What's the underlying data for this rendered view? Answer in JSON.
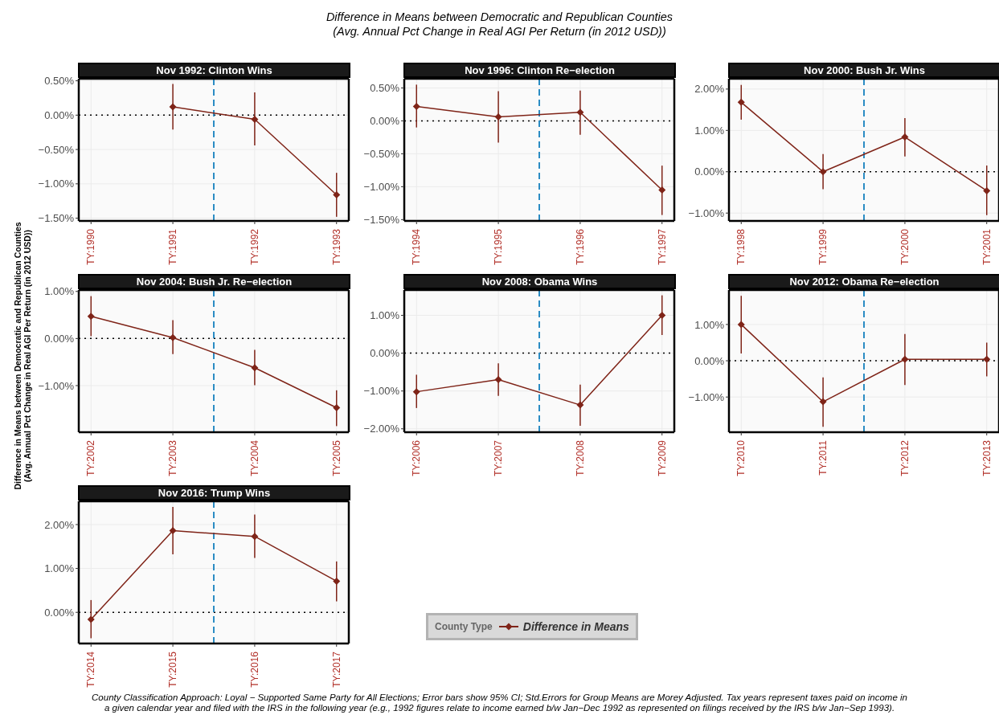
{
  "chart_data": [
    {
      "type": "line",
      "title": "Nov 1992: Clinton Wins",
      "annotations": [
        "Difference in Means between Democratic and Republican Counties\n(Avg. Annual Pct Change in Real AGI Per Return (in 2012 USD))",
        "County Classification Approach: Loyal − Supported Same Party for All Elections; Error bars show 95% CI; Std.Errors for Group Means are Morey Adjusted. Tax years represent taxes paid on income in\na given calendar year and filed with the IRS in the following year (e.g., 1992 figures relate to income earned b/w Jan−Dec 1992 as represented on filings received by the IRS b/w Jan−Sep 1993)."
      ],
      "x": [
        1991,
        1992,
        1993
      ],
      "xlim": [
        1989.85,
        1993.15
      ],
      "xticks": [
        {
          "value": 1990,
          "label": "TY:1990"
        },
        {
          "value": 1991,
          "label": "TY:1991"
        },
        {
          "value": 1992,
          "label": "TY:1992"
        },
        {
          "value": 1993,
          "label": "TY:1993"
        }
      ],
      "ylim": [
        -1.54,
        0.53
      ],
      "yticks": [
        {
          "value": -1.5,
          "label": "−1.50%"
        },
        {
          "value": -1,
          "label": "−1.00%"
        },
        {
          "value": -0.5,
          "label": "−0.50%"
        },
        {
          "value": 0,
          "label": "0.00%"
        },
        {
          "value": 0.5,
          "label": "0.50%"
        }
      ],
      "grid": true,
      "marker": "diamond",
      "line_style": "solid",
      "series": [
        {
          "color": "#7f2418",
          "values": [
            0.12,
            -0.06,
            -1.16
          ],
          "errors": [
            [
              -0.21,
              0.455
            ],
            [
              -0.44,
              0.33
            ],
            [
              -1.48,
              -0.84
            ]
          ]
        }
      ],
      "ref_lines": [
        {
          "axis": "y",
          "value": 0,
          "color": "#000000",
          "line_style": "dotted"
        },
        {
          "axis": "x",
          "value": 1991.5,
          "color": "#2b8cc4",
          "line_style": "dashed"
        }
      ]
    },
    {
      "type": "line",
      "title": "Nov 1996: Clinton Re−election",
      "x": [
        1994,
        1995,
        1996,
        1997
      ],
      "xlim": [
        1993.85,
        1997.15
      ],
      "xticks": [
        {
          "value": 1994,
          "label": "TY:1994"
        },
        {
          "value": 1995,
          "label": "TY:1995"
        },
        {
          "value": 1996,
          "label": "TY:1996"
        },
        {
          "value": 1997,
          "label": "TY:1997"
        }
      ],
      "ylim": [
        -1.52,
        0.64
      ],
      "yticks": [
        {
          "value": -1.5,
          "label": "−1.50%"
        },
        {
          "value": -1,
          "label": "−1.00%"
        },
        {
          "value": -0.5,
          "label": "−0.50%"
        },
        {
          "value": 0,
          "label": "0.00%"
        },
        {
          "value": 0.5,
          "label": "0.50%"
        }
      ],
      "grid": true,
      "marker": "diamond",
      "line_style": "solid",
      "series": [
        {
          "color": "#7f2418",
          "values": [
            0.22,
            0.06,
            0.13,
            -1.05
          ],
          "errors": [
            [
              -0.1,
              0.55
            ],
            [
              -0.33,
              0.45
            ],
            [
              -0.21,
              0.46
            ],
            [
              -1.43,
              -0.68
            ]
          ]
        }
      ],
      "ref_lines": [
        {
          "axis": "y",
          "value": 0,
          "color": "#000000",
          "line_style": "dotted"
        },
        {
          "axis": "x",
          "value": 1995.5,
          "color": "#2b8cc4",
          "line_style": "dashed"
        }
      ]
    },
    {
      "type": "line",
      "title": "Nov 2000: Bush Jr. Wins",
      "x": [
        1998,
        1999,
        2000,
        2001
      ],
      "xlim": [
        1997.85,
        2001.15
      ],
      "xticks": [
        {
          "value": 1998,
          "label": "TY:1998"
        },
        {
          "value": 1999,
          "label": "TY:1999"
        },
        {
          "value": 2000,
          "label": "TY:2000"
        },
        {
          "value": 2001,
          "label": "TY:2001"
        }
      ],
      "ylim": [
        -1.19,
        2.25
      ],
      "yticks": [
        {
          "value": -1,
          "label": "−1.00%"
        },
        {
          "value": 0,
          "label": "0.00%"
        },
        {
          "value": 1,
          "label": "1.00%"
        },
        {
          "value": 2,
          "label": "2.00%"
        }
      ],
      "grid": true,
      "marker": "diamond",
      "line_style": "solid",
      "series": [
        {
          "color": "#7f2418",
          "values": [
            1.68,
            0.0,
            0.84,
            -0.46
          ],
          "errors": [
            [
              1.26,
              2.1
            ],
            [
              -0.42,
              0.43
            ],
            [
              0.37,
              1.3
            ],
            [
              -1.05,
              0.15
            ]
          ]
        }
      ],
      "ref_lines": [
        {
          "axis": "y",
          "value": 0,
          "color": "#000000",
          "line_style": "dotted"
        },
        {
          "axis": "x",
          "value": 1999.5,
          "color": "#2b8cc4",
          "line_style": "dashed"
        }
      ]
    },
    {
      "type": "line",
      "title": "Nov 2004: Bush Jr. Re−election",
      "ylabel": "Difference in Means between Democratic and Republican Counties\n(Avg. Annual Pct Change in Real AGI Per Return (in 2012 USD))",
      "x": [
        2002,
        2003,
        2004,
        2005
      ],
      "xlim": [
        2001.85,
        2005.15
      ],
      "xticks": [
        {
          "value": 2002,
          "label": "TY:2002"
        },
        {
          "value": 2003,
          "label": "TY:2003"
        },
        {
          "value": 2004,
          "label": "TY:2004"
        },
        {
          "value": 2005,
          "label": "TY:2005"
        }
      ],
      "ylim": [
        -1.99,
        1.03
      ],
      "yticks": [
        {
          "value": -1,
          "label": "−1.00%"
        },
        {
          "value": 0,
          "label": "0.00%"
        },
        {
          "value": 1,
          "label": "1.00%"
        }
      ],
      "grid": true,
      "marker": "diamond",
      "line_style": "solid",
      "series": [
        {
          "color": "#7f2418",
          "values": [
            0.47,
            0.02,
            -0.62,
            -1.47
          ],
          "errors": [
            [
              0.05,
              0.9
            ],
            [
              -0.33,
              0.39
            ],
            [
              -0.99,
              -0.24
            ],
            [
              -1.86,
              -1.1
            ]
          ]
        }
      ],
      "ref_lines": [
        {
          "axis": "y",
          "value": 0,
          "color": "#000000",
          "line_style": "dotted"
        },
        {
          "axis": "x",
          "value": 2003.5,
          "color": "#2b8cc4",
          "line_style": "dashed"
        }
      ]
    },
    {
      "type": "line",
      "title": "Nov 2008: Obama Wins",
      "x": [
        2006,
        2007,
        2008,
        2009
      ],
      "xlim": [
        2005.85,
        2009.15
      ],
      "xticks": [
        {
          "value": 2006,
          "label": "TY:2006"
        },
        {
          "value": 2007,
          "label": "TY:2007"
        },
        {
          "value": 2008,
          "label": "TY:2008"
        },
        {
          "value": 2009,
          "label": "TY:2009"
        }
      ],
      "ylim": [
        -2.09,
        1.67
      ],
      "yticks": [
        {
          "value": -2,
          "label": "−2.00%"
        },
        {
          "value": -1,
          "label": "−1.00%"
        },
        {
          "value": 0,
          "label": "0.00%"
        },
        {
          "value": 1,
          "label": "1.00%"
        }
      ],
      "grid": true,
      "marker": "diamond",
      "line_style": "solid",
      "series": [
        {
          "color": "#7f2418",
          "values": [
            -1.02,
            -0.7,
            -1.37,
            1.0
          ],
          "errors": [
            [
              -1.45,
              -0.57
            ],
            [
              -1.13,
              -0.27
            ],
            [
              -1.92,
              -0.83
            ],
            [
              0.48,
              1.53
            ]
          ]
        }
      ],
      "ref_lines": [
        {
          "axis": "y",
          "value": 0,
          "color": "#000000",
          "line_style": "dotted"
        },
        {
          "axis": "x",
          "value": 2007.5,
          "color": "#2b8cc4",
          "line_style": "dashed"
        }
      ]
    },
    {
      "type": "line",
      "title": "Nov 2012: Obama Re−election",
      "x": [
        2010,
        2011,
        2012,
        2013
      ],
      "xlim": [
        2009.85,
        2013.15
      ],
      "xticks": [
        {
          "value": 2010,
          "label": "TY:2010"
        },
        {
          "value": 2011,
          "label": "TY:2011"
        },
        {
          "value": 2012,
          "label": "TY:2012"
        },
        {
          "value": 2013,
          "label": "TY:2013"
        }
      ],
      "ylim": [
        -1.97,
        1.95
      ],
      "yticks": [
        {
          "value": -1,
          "label": "−1.00%"
        },
        {
          "value": 0,
          "label": "0.00%"
        },
        {
          "value": 1,
          "label": "1.00%"
        }
      ],
      "grid": true,
      "marker": "diamond",
      "line_style": "solid",
      "series": [
        {
          "color": "#7f2418",
          "values": [
            1.0,
            -1.13,
            0.04,
            0.04
          ],
          "errors": [
            [
              0.2,
              1.79
            ],
            [
              -1.82,
              -0.46
            ],
            [
              -0.67,
              0.74
            ],
            [
              -0.43,
              0.5
            ]
          ]
        }
      ],
      "ref_lines": [
        {
          "axis": "y",
          "value": 0,
          "color": "#000000",
          "line_style": "dotted"
        },
        {
          "axis": "x",
          "value": 2011.5,
          "color": "#2b8cc4",
          "line_style": "dashed"
        }
      ]
    },
    {
      "type": "line",
      "title": "Nov 2016: Trump Wins",
      "legend": "right",
      "legend_title": "County Type",
      "x": [
        2014,
        2015,
        2016,
        2017
      ],
      "xlim": [
        2013.85,
        2017.15
      ],
      "xticks": [
        {
          "value": 2014,
          "label": "TY:2014"
        },
        {
          "value": 2015,
          "label": "TY:2015"
        },
        {
          "value": 2016,
          "label": "TY:2016"
        },
        {
          "value": 2017,
          "label": "TY:2017"
        }
      ],
      "ylim": [
        -0.71,
        2.53
      ],
      "yticks": [
        {
          "value": 0,
          "label": "0.00%"
        },
        {
          "value": 1,
          "label": "1.00%"
        },
        {
          "value": 2,
          "label": "2.00%"
        }
      ],
      "grid": true,
      "marker": "diamond",
      "line_style": "solid",
      "series": [
        {
          "name": "Difference in Means",
          "color": "#7f2418",
          "values": [
            -0.16,
            1.86,
            1.73,
            0.71
          ],
          "errors": [
            [
              -0.59,
              0.28
            ],
            [
              1.32,
              2.4
            ],
            [
              1.24,
              2.23
            ],
            [
              0.25,
              1.16
            ]
          ]
        }
      ],
      "ref_lines": [
        {
          "axis": "y",
          "value": 0,
          "color": "#000000",
          "line_style": "dotted"
        },
        {
          "axis": "x",
          "value": 2015.5,
          "color": "#2b8cc4",
          "line_style": "dashed"
        }
      ]
    }
  ]
}
